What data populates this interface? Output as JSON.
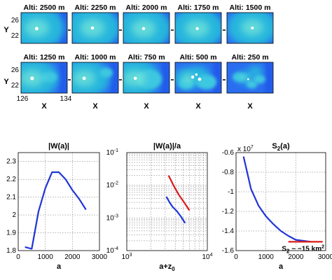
{
  "heatmaps": {
    "altitude_titles": [
      "Alti: 2500 m",
      "Alti: 2250 m",
      "Alti: 2000 m",
      "Alti: 1750 m",
      "Alti: 1500 m",
      "Alti: 1250 m",
      "Alti: 1000 m",
      "Alti: 750 m",
      "Alti: 500 m",
      "Alti: 250 m"
    ],
    "y_label": "Y",
    "x_label": "X",
    "y_ticks": [
      "26",
      "22"
    ],
    "x_ticks": [
      "126",
      "134"
    ],
    "colors": {
      "bg": "#2a6df0",
      "mid": "#25b6dd",
      "core": "#8ff4d6",
      "hot": "#ffffff"
    }
  },
  "chart_data": [
    {
      "type": "line",
      "title": "|W(a)|",
      "xlabel": "a",
      "ylabel": "",
      "xlim": [
        0,
        3000
      ],
      "ylim": [
        1.8,
        2.35
      ],
      "x_ticks": [
        "0",
        "1000",
        "2000",
        "3000"
      ],
      "y_ticks": [
        "1.8",
        "1.9",
        "2",
        "2.1",
        "2.2",
        "2.3"
      ],
      "grid": true,
      "series": [
        {
          "color": "#1f35d6",
          "x": [
            250,
            500,
            750,
            1000,
            1250,
            1500,
            1750,
            2000,
            2250,
            2500
          ],
          "y": [
            1.82,
            1.81,
            2.02,
            2.15,
            2.24,
            2.24,
            2.2,
            2.14,
            2.09,
            2.03
          ]
        }
      ]
    },
    {
      "type": "line",
      "title": "|W(a)|/a",
      "xlabel": "a+z",
      "xlabel_sub": "0",
      "ylabel": "",
      "scale": "log-log",
      "xlim_exp": [
        3,
        4
      ],
      "ylim_exp": [
        -4,
        -1
      ],
      "x_ticks_exp": [
        "3",
        "4"
      ],
      "y_ticks_exp": [
        "-1",
        "-2",
        "-3",
        "-4"
      ],
      "grid": true,
      "series": [
        {
          "color": "#1f35d6",
          "x": [
            3100,
            3400,
            3700,
            4200,
            4700,
            5300
          ],
          "y": [
            0.0045,
            0.003,
            0.0022,
            0.0016,
            0.0011,
            0.0007
          ]
        },
        {
          "color": "#d81b1b",
          "x": [
            3300,
            3800,
            4400,
            5200,
            6000
          ],
          "y": [
            0.02,
            0.01,
            0.0052,
            0.0029,
            0.0017
          ]
        }
      ]
    },
    {
      "type": "line",
      "title": "S",
      "title_sub": "2",
      "title_suffix": "(a)",
      "xlabel": "a",
      "ylabel": "",
      "multiplier": "x 10",
      "multiplier_exp": "7",
      "xlim": [
        0,
        3000
      ],
      "ylim": [
        -1.6,
        -0.6
      ],
      "x_ticks": [
        "0",
        "1000",
        "2000",
        "3000"
      ],
      "y_ticks": [
        "-0.6",
        "-0.8",
        "-1",
        "-1.2",
        "-1.4",
        "-1.6"
      ],
      "grid": true,
      "annotation": {
        "text_a": "S",
        "sub": "2",
        "text_b": " ~ −15 km",
        "sup": "2"
      },
      "series": [
        {
          "color": "#1f35d6",
          "x": [
            250,
            500,
            750,
            1000,
            1250,
            1500,
            1750,
            2000,
            2250,
            2500
          ],
          "y": [
            -0.64,
            -0.97,
            -1.14,
            -1.25,
            -1.33,
            -1.4,
            -1.45,
            -1.49,
            -1.5,
            -1.51
          ]
        },
        {
          "color": "#d81b1b",
          "x": [
            1750,
            2000,
            2500,
            2900
          ],
          "y": [
            -1.51,
            -1.51,
            -1.51,
            -1.51
          ]
        }
      ]
    }
  ]
}
